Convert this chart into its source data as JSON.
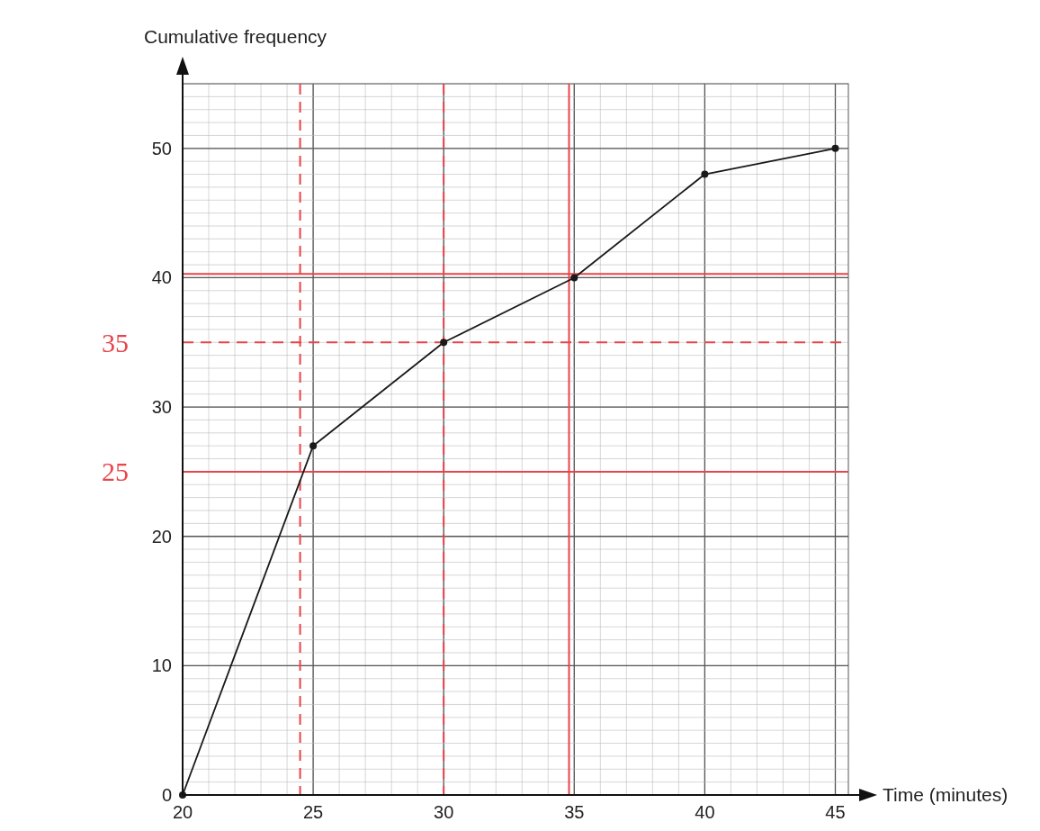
{
  "chart_data": {
    "type": "line",
    "xlabel": "Time (minutes)",
    "ylabel": "Cumulative frequency",
    "x": [
      20,
      25,
      30,
      35,
      40,
      45
    ],
    "series": [
      {
        "color": "#1a1a1a",
        "values": [
          0,
          27,
          35,
          40,
          48,
          50
        ]
      }
    ],
    "xlim": [
      20,
      45.5
    ],
    "ylim": [
      0,
      55
    ],
    "xticks": [
      20,
      25,
      30,
      35,
      40,
      45
    ],
    "yticks": [
      0,
      10,
      20,
      30,
      40,
      50
    ],
    "grid": true,
    "marker": "circle",
    "line_style": "solid",
    "ref_lines": [
      {
        "axis": "y",
        "value": 25,
        "label": "25",
        "color": "#e8454a",
        "line_style": "solid"
      },
      {
        "axis": "y",
        "value": 35,
        "label": "35",
        "color": "#e8454a",
        "line_style": "dashed"
      },
      {
        "axis": "y",
        "value": 40.3,
        "color": "#e8454a",
        "line_style": "solid"
      },
      {
        "axis": "x",
        "value": 24.5,
        "color": "#e8454a",
        "line_style": "dashed"
      },
      {
        "axis": "x",
        "value": 30,
        "color": "#e8454a",
        "line_style": "dashed"
      },
      {
        "axis": "x",
        "value": 34.8,
        "color": "#e8454a",
        "line_style": "solid"
      }
    ]
  }
}
